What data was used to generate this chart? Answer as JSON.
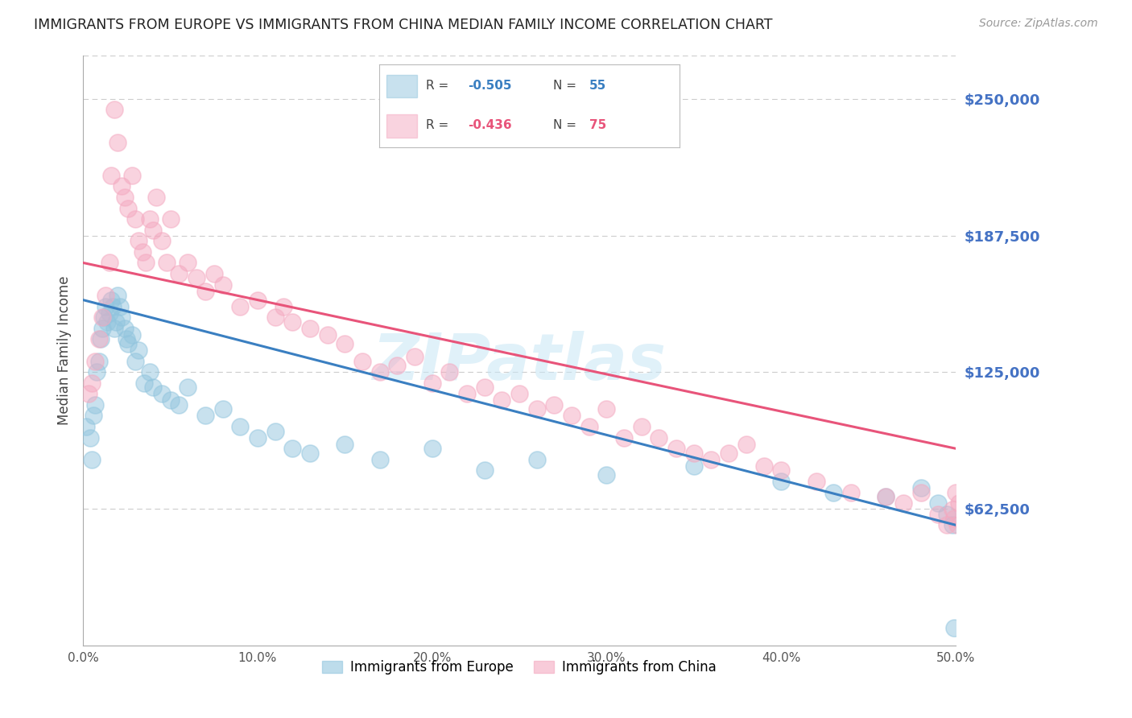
{
  "title": "IMMIGRANTS FROM EUROPE VS IMMIGRANTS FROM CHINA MEDIAN FAMILY INCOME CORRELATION CHART",
  "source": "Source: ZipAtlas.com",
  "ylabel": "Median Family Income",
  "yticks": [
    0,
    62500,
    125000,
    187500,
    250000
  ],
  "ytick_labels": [
    "",
    "$62,500",
    "$125,000",
    "$187,500",
    "$250,000"
  ],
  "xlim": [
    0.0,
    0.5
  ],
  "ylim": [
    0,
    270000
  ],
  "europe_color": "#92c5de",
  "china_color": "#f4a9c0",
  "trendline_europe_color": "#3a7fc1",
  "trendline_china_color": "#e8547a",
  "background_color": "#ffffff",
  "grid_color": "#cccccc",
  "ytick_color": "#4472c4",
  "watermark": "ZIPatlas",
  "europe_x": [
    0.002,
    0.004,
    0.005,
    0.006,
    0.007,
    0.008,
    0.009,
    0.01,
    0.011,
    0.012,
    0.013,
    0.014,
    0.015,
    0.016,
    0.017,
    0.018,
    0.019,
    0.02,
    0.021,
    0.022,
    0.024,
    0.025,
    0.026,
    0.028,
    0.03,
    0.032,
    0.035,
    0.038,
    0.04,
    0.045,
    0.05,
    0.055,
    0.06,
    0.07,
    0.08,
    0.09,
    0.1,
    0.11,
    0.12,
    0.13,
    0.15,
    0.17,
    0.2,
    0.23,
    0.26,
    0.3,
    0.35,
    0.4,
    0.43,
    0.46,
    0.48,
    0.49,
    0.495,
    0.498,
    0.499
  ],
  "europe_y": [
    100000,
    95000,
    85000,
    105000,
    110000,
    125000,
    130000,
    140000,
    145000,
    150000,
    155000,
    148000,
    152000,
    158000,
    155000,
    145000,
    148000,
    160000,
    155000,
    150000,
    145000,
    140000,
    138000,
    142000,
    130000,
    135000,
    120000,
    125000,
    118000,
    115000,
    112000,
    110000,
    118000,
    105000,
    108000,
    100000,
    95000,
    98000,
    90000,
    88000,
    92000,
    85000,
    90000,
    80000,
    85000,
    78000,
    82000,
    75000,
    70000,
    68000,
    72000,
    65000,
    60000,
    55000,
    8000
  ],
  "china_x": [
    0.003,
    0.005,
    0.007,
    0.009,
    0.011,
    0.013,
    0.015,
    0.016,
    0.018,
    0.02,
    0.022,
    0.024,
    0.026,
    0.028,
    0.03,
    0.032,
    0.034,
    0.036,
    0.038,
    0.04,
    0.042,
    0.045,
    0.048,
    0.05,
    0.055,
    0.06,
    0.065,
    0.07,
    0.075,
    0.08,
    0.09,
    0.1,
    0.11,
    0.115,
    0.12,
    0.13,
    0.14,
    0.15,
    0.16,
    0.17,
    0.18,
    0.19,
    0.2,
    0.21,
    0.22,
    0.23,
    0.24,
    0.25,
    0.26,
    0.27,
    0.28,
    0.29,
    0.3,
    0.31,
    0.32,
    0.33,
    0.34,
    0.35,
    0.36,
    0.37,
    0.38,
    0.39,
    0.4,
    0.42,
    0.44,
    0.46,
    0.47,
    0.48,
    0.49,
    0.495,
    0.498,
    0.499,
    0.5,
    0.501,
    0.502
  ],
  "china_y": [
    115000,
    120000,
    130000,
    140000,
    150000,
    160000,
    175000,
    215000,
    245000,
    230000,
    210000,
    205000,
    200000,
    215000,
    195000,
    185000,
    180000,
    175000,
    195000,
    190000,
    205000,
    185000,
    175000,
    195000,
    170000,
    175000,
    168000,
    162000,
    170000,
    165000,
    155000,
    158000,
    150000,
    155000,
    148000,
    145000,
    142000,
    138000,
    130000,
    125000,
    128000,
    132000,
    120000,
    125000,
    115000,
    118000,
    112000,
    115000,
    108000,
    110000,
    105000,
    100000,
    108000,
    95000,
    100000,
    95000,
    90000,
    88000,
    85000,
    88000,
    92000,
    82000,
    80000,
    75000,
    70000,
    68000,
    65000,
    70000,
    60000,
    55000,
    62000,
    58000,
    70000,
    55000,
    65000
  ],
  "trendline_europe_x0": 0.0,
  "trendline_europe_x1": 0.5,
  "trendline_europe_y0": 158000,
  "trendline_europe_y1": 55000,
  "trendline_china_x0": 0.0,
  "trendline_china_x1": 0.5,
  "trendline_china_y0": 175000,
  "trendline_china_y1": 90000
}
